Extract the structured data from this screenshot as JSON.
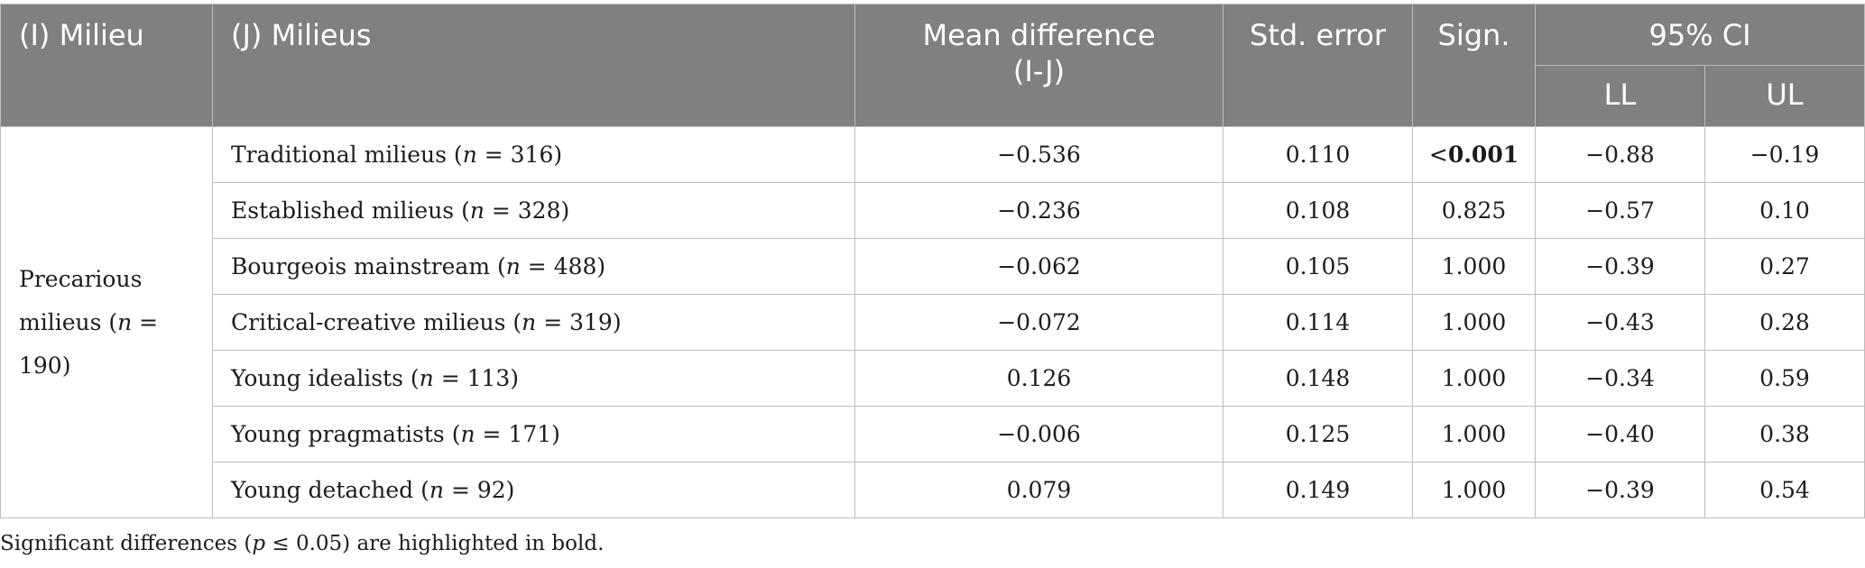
{
  "header": {
    "i_milieu": "(I) Milieu",
    "j_milieus": "(J) Milieus",
    "mean_difference_line1": "Mean difference",
    "mean_difference_line2": "(I-J)",
    "std_error": "Std. error",
    "sign": "Sign.",
    "ci": "95% CI",
    "ll": "LL",
    "ul": "UL"
  },
  "group": {
    "label_line1": "Precarious",
    "label_line2_prefix": "milieus (",
    "n_symbol": "n",
    "label_line2_value": " = 190)"
  },
  "rows": [
    {
      "milieu": "Traditional milieus (",
      "n": "n",
      "n_value": " = 316)",
      "mean_diff": "−0.536",
      "std_error": "0.110",
      "sign_prefix": "<",
      "sign": "0.001",
      "sign_bold": true,
      "ll": "−0.88",
      "ul": "−0.19"
    },
    {
      "milieu": "Established milieus (",
      "n": "n",
      "n_value": " = 328)",
      "mean_diff": "−0.236",
      "std_error": "0.108",
      "sign_prefix": "",
      "sign": "0.825",
      "sign_bold": false,
      "ll": "−0.57",
      "ul": "0.10"
    },
    {
      "milieu": "Bourgeois mainstream (",
      "n": "n",
      "n_value": " = 488)",
      "mean_diff": "−0.062",
      "std_error": "0.105",
      "sign_prefix": "",
      "sign": "1.000",
      "sign_bold": false,
      "ll": "−0.39",
      "ul": "0.27"
    },
    {
      "milieu": "Critical-creative milieus (",
      "n": "n",
      "n_value": " = 319)",
      "mean_diff": "−0.072",
      "std_error": "0.114",
      "sign_prefix": "",
      "sign": "1.000",
      "sign_bold": false,
      "ll": "−0.43",
      "ul": "0.28"
    },
    {
      "milieu": "Young idealists (",
      "n": "n",
      "n_value": " = 113)",
      "mean_diff": "0.126",
      "std_error": "0.148",
      "sign_prefix": "",
      "sign": "1.000",
      "sign_bold": false,
      "ll": "−0.34",
      "ul": "0.59"
    },
    {
      "milieu": "Young pragmatists (",
      "n": "n",
      "n_value": " = 171)",
      "mean_diff": "−0.006",
      "std_error": "0.125",
      "sign_prefix": "",
      "sign": "1.000",
      "sign_bold": false,
      "ll": "−0.40",
      "ul": "0.38"
    },
    {
      "milieu": "Young detached (",
      "n": "n",
      "n_value": " = 92)",
      "mean_diff": "0.079",
      "std_error": "0.149",
      "sign_prefix": "",
      "sign": "1.000",
      "sign_bold": false,
      "ll": "−0.39",
      "ul": "0.54"
    }
  ],
  "footnote": {
    "prefix": "Significant differences (",
    "p": "p",
    "condition": " ≤ 0.05) are highlighted in bold."
  }
}
